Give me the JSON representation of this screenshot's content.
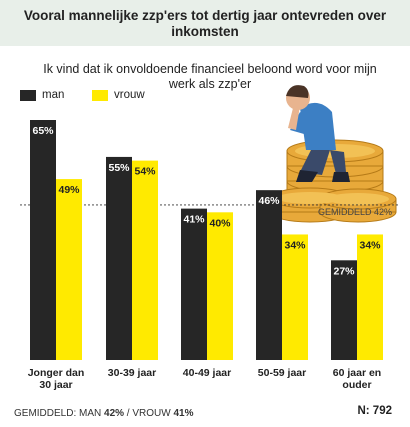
{
  "title": "Vooral mannelijke zzp'ers tot dertig jaar ontevreden over inkomsten",
  "subtitle": "Ik vind dat ik onvoldoende financieel beloond word voor mijn werk als zzp'er",
  "colors": {
    "man": "#262626",
    "vrouw": "#ffea00",
    "title_band": "#e8efe9",
    "average_line": "#333333"
  },
  "icons": {
    "illustration": "man-sitting-on-coin-stack-icon"
  },
  "chart_data": {
    "type": "bar",
    "categories": [
      "Jonger dan 30 jaar",
      "30-39 jaar",
      "40-49 jaar",
      "50-59 jaar",
      "60 jaar en ouder"
    ],
    "series": [
      {
        "name": "man",
        "values": [
          65,
          55,
          41,
          46,
          27
        ],
        "labels": [
          "65%",
          "55%",
          "41%",
          "46%",
          "27%"
        ]
      },
      {
        "name": "vrouw",
        "values": [
          49,
          54,
          40,
          34,
          34
        ],
        "labels": [
          "49%",
          "54%",
          "40%",
          "34%",
          "34%"
        ]
      }
    ],
    "ylim": [
      0,
      65
    ],
    "average": {
      "value": 42,
      "label": "GEMIDDELD 42%"
    },
    "legend": "top-left",
    "grid": false
  },
  "footer": {
    "avg_prefix": "GEMIDDELD: MAN ",
    "avg_man": "42%",
    "avg_sep": " / VROUW ",
    "avg_vrouw": "41%",
    "n": "N: 792"
  }
}
